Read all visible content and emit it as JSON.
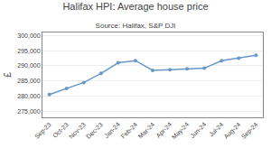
{
  "chart_data": {
    "type": "line",
    "title": "Halifax HPI: Average house price",
    "subtitle": "Source: Halifax, S&P DJI",
    "ylabel": "£",
    "categories": [
      "Sep-23",
      "Oct-23",
      "Nov-23",
      "Dec-23",
      "Jan-24",
      "Feb-24",
      "Mar-24",
      "Apr-24",
      "May-24",
      "Jun-24",
      "Jul-24",
      "Aug-24",
      "Sep-24"
    ],
    "values": [
      280500,
      282500,
      284500,
      287500,
      291000,
      291700,
      288500,
      288700,
      289000,
      289200,
      291700,
      292500,
      293500
    ],
    "color": "#6699cc",
    "marker": "circle",
    "ylim": [
      273000,
      301000
    ],
    "yticks": [
      {
        "value": 275000,
        "label": "275,000"
      },
      {
        "value": 280000,
        "label": "280,000"
      },
      {
        "value": 285000,
        "label": "285,000"
      },
      {
        "value": 290000,
        "label": "290,000"
      },
      {
        "value": 295000,
        "label": "295,000"
      },
      {
        "value": 300000,
        "label": "300,000"
      }
    ],
    "grid": true
  }
}
